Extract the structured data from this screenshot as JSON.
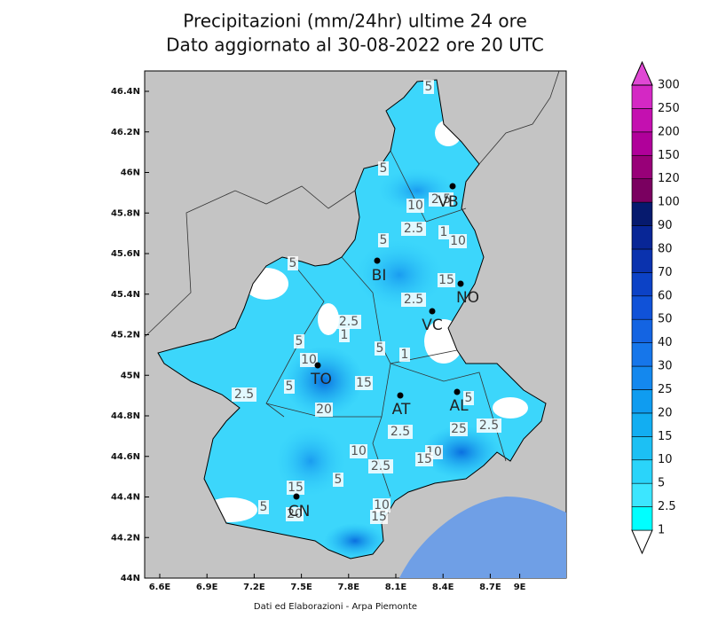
{
  "header": {
    "title_lines": [
      "Precipitazioni (mm/24hr) ultime 24 ore",
      "Dato aggiornato al 30-08-2022 ore 20 UTC"
    ]
  },
  "map": {
    "lat_labels": [
      "46.4N",
      "46.2N",
      "46N",
      "45.8N",
      "45.6N",
      "45.4N",
      "45.2N",
      "45N",
      "44.8N",
      "44.6N",
      "44.4N",
      "44.2N",
      "44N"
    ],
    "lon_labels": [
      "6.6E",
      "6.9E",
      "7.2E",
      "7.5E",
      "7.8E",
      "8.1E",
      "8.4E",
      "8.7E",
      "9E"
    ],
    "cities": [
      "VB",
      "BI",
      "NO",
      "VC",
      "TO",
      "AT",
      "AL",
      "CN"
    ],
    "contour_labels": [
      "5",
      "5",
      "2.5",
      "10",
      "2.5",
      "1",
      "10",
      "5",
      "5",
      "15",
      "2.5",
      "2.5",
      "5",
      "1",
      "10",
      "5",
      "1",
      "5",
      "15",
      "2.5",
      "20",
      "5",
      "2.5",
      "25",
      "2.5",
      "10",
      "10",
      "15",
      "2.5",
      "5",
      "15",
      "5",
      "20",
      "10",
      "15"
    ]
  },
  "colorbar": {
    "labels": [
      "1",
      "2.5",
      "5",
      "10",
      "15",
      "20",
      "25",
      "30",
      "40",
      "50",
      "60",
      "70",
      "80",
      "90",
      "100",
      "120",
      "150",
      "200",
      "250",
      "300"
    ],
    "colors": [
      "#00ffff",
      "#3ce6ff",
      "#2ad4fa",
      "#1cc0f4",
      "#12aef2",
      "#0f9cf0",
      "#1488ee",
      "#1676ea",
      "#1464e2",
      "#1052d8",
      "#0c42c6",
      "#0a32ae",
      "#082696",
      "#061a6e",
      "#7a0060",
      "#980078",
      "#b0009a",
      "#c410b0",
      "#d428c4"
    ],
    "top_color": "#e048d4",
    "bottom_color": "#ffffff"
  },
  "footer": "Dati ed Elaborazioni - Arpa Piemonte"
}
